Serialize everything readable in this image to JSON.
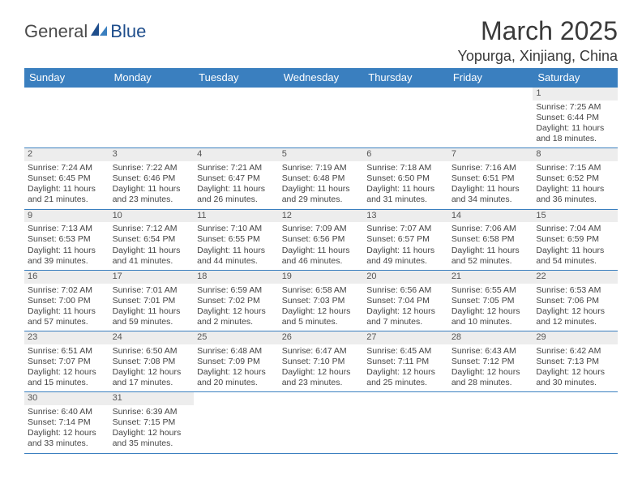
{
  "logo": {
    "textA": "General",
    "textB": "Blue"
  },
  "title": "March 2025",
  "location": "Yopurga, Xinjiang, China",
  "header_bg": "#3a7fbf",
  "day_headers": [
    "Sunday",
    "Monday",
    "Tuesday",
    "Wednesday",
    "Thursday",
    "Friday",
    "Saturday"
  ],
  "weeks": [
    [
      null,
      null,
      null,
      null,
      null,
      null,
      {
        "n": "1",
        "sr": "Sunrise: 7:25 AM",
        "ss": "Sunset: 6:44 PM",
        "d1": "Daylight: 11 hours",
        "d2": "and 18 minutes."
      }
    ],
    [
      {
        "n": "2",
        "sr": "Sunrise: 7:24 AM",
        "ss": "Sunset: 6:45 PM",
        "d1": "Daylight: 11 hours",
        "d2": "and 21 minutes."
      },
      {
        "n": "3",
        "sr": "Sunrise: 7:22 AM",
        "ss": "Sunset: 6:46 PM",
        "d1": "Daylight: 11 hours",
        "d2": "and 23 minutes."
      },
      {
        "n": "4",
        "sr": "Sunrise: 7:21 AM",
        "ss": "Sunset: 6:47 PM",
        "d1": "Daylight: 11 hours",
        "d2": "and 26 minutes."
      },
      {
        "n": "5",
        "sr": "Sunrise: 7:19 AM",
        "ss": "Sunset: 6:48 PM",
        "d1": "Daylight: 11 hours",
        "d2": "and 29 minutes."
      },
      {
        "n": "6",
        "sr": "Sunrise: 7:18 AM",
        "ss": "Sunset: 6:50 PM",
        "d1": "Daylight: 11 hours",
        "d2": "and 31 minutes."
      },
      {
        "n": "7",
        "sr": "Sunrise: 7:16 AM",
        "ss": "Sunset: 6:51 PM",
        "d1": "Daylight: 11 hours",
        "d2": "and 34 minutes."
      },
      {
        "n": "8",
        "sr": "Sunrise: 7:15 AM",
        "ss": "Sunset: 6:52 PM",
        "d1": "Daylight: 11 hours",
        "d2": "and 36 minutes."
      }
    ],
    [
      {
        "n": "9",
        "sr": "Sunrise: 7:13 AM",
        "ss": "Sunset: 6:53 PM",
        "d1": "Daylight: 11 hours",
        "d2": "and 39 minutes."
      },
      {
        "n": "10",
        "sr": "Sunrise: 7:12 AM",
        "ss": "Sunset: 6:54 PM",
        "d1": "Daylight: 11 hours",
        "d2": "and 41 minutes."
      },
      {
        "n": "11",
        "sr": "Sunrise: 7:10 AM",
        "ss": "Sunset: 6:55 PM",
        "d1": "Daylight: 11 hours",
        "d2": "and 44 minutes."
      },
      {
        "n": "12",
        "sr": "Sunrise: 7:09 AM",
        "ss": "Sunset: 6:56 PM",
        "d1": "Daylight: 11 hours",
        "d2": "and 46 minutes."
      },
      {
        "n": "13",
        "sr": "Sunrise: 7:07 AM",
        "ss": "Sunset: 6:57 PM",
        "d1": "Daylight: 11 hours",
        "d2": "and 49 minutes."
      },
      {
        "n": "14",
        "sr": "Sunrise: 7:06 AM",
        "ss": "Sunset: 6:58 PM",
        "d1": "Daylight: 11 hours",
        "d2": "and 52 minutes."
      },
      {
        "n": "15",
        "sr": "Sunrise: 7:04 AM",
        "ss": "Sunset: 6:59 PM",
        "d1": "Daylight: 11 hours",
        "d2": "and 54 minutes."
      }
    ],
    [
      {
        "n": "16",
        "sr": "Sunrise: 7:02 AM",
        "ss": "Sunset: 7:00 PM",
        "d1": "Daylight: 11 hours",
        "d2": "and 57 minutes."
      },
      {
        "n": "17",
        "sr": "Sunrise: 7:01 AM",
        "ss": "Sunset: 7:01 PM",
        "d1": "Daylight: 11 hours",
        "d2": "and 59 minutes."
      },
      {
        "n": "18",
        "sr": "Sunrise: 6:59 AM",
        "ss": "Sunset: 7:02 PM",
        "d1": "Daylight: 12 hours",
        "d2": "and 2 minutes."
      },
      {
        "n": "19",
        "sr": "Sunrise: 6:58 AM",
        "ss": "Sunset: 7:03 PM",
        "d1": "Daylight: 12 hours",
        "d2": "and 5 minutes."
      },
      {
        "n": "20",
        "sr": "Sunrise: 6:56 AM",
        "ss": "Sunset: 7:04 PM",
        "d1": "Daylight: 12 hours",
        "d2": "and 7 minutes."
      },
      {
        "n": "21",
        "sr": "Sunrise: 6:55 AM",
        "ss": "Sunset: 7:05 PM",
        "d1": "Daylight: 12 hours",
        "d2": "and 10 minutes."
      },
      {
        "n": "22",
        "sr": "Sunrise: 6:53 AM",
        "ss": "Sunset: 7:06 PM",
        "d1": "Daylight: 12 hours",
        "d2": "and 12 minutes."
      }
    ],
    [
      {
        "n": "23",
        "sr": "Sunrise: 6:51 AM",
        "ss": "Sunset: 7:07 PM",
        "d1": "Daylight: 12 hours",
        "d2": "and 15 minutes."
      },
      {
        "n": "24",
        "sr": "Sunrise: 6:50 AM",
        "ss": "Sunset: 7:08 PM",
        "d1": "Daylight: 12 hours",
        "d2": "and 17 minutes."
      },
      {
        "n": "25",
        "sr": "Sunrise: 6:48 AM",
        "ss": "Sunset: 7:09 PM",
        "d1": "Daylight: 12 hours",
        "d2": "and 20 minutes."
      },
      {
        "n": "26",
        "sr": "Sunrise: 6:47 AM",
        "ss": "Sunset: 7:10 PM",
        "d1": "Daylight: 12 hours",
        "d2": "and 23 minutes."
      },
      {
        "n": "27",
        "sr": "Sunrise: 6:45 AM",
        "ss": "Sunset: 7:11 PM",
        "d1": "Daylight: 12 hours",
        "d2": "and 25 minutes."
      },
      {
        "n": "28",
        "sr": "Sunrise: 6:43 AM",
        "ss": "Sunset: 7:12 PM",
        "d1": "Daylight: 12 hours",
        "d2": "and 28 minutes."
      },
      {
        "n": "29",
        "sr": "Sunrise: 6:42 AM",
        "ss": "Sunset: 7:13 PM",
        "d1": "Daylight: 12 hours",
        "d2": "and 30 minutes."
      }
    ],
    [
      {
        "n": "30",
        "sr": "Sunrise: 6:40 AM",
        "ss": "Sunset: 7:14 PM",
        "d1": "Daylight: 12 hours",
        "d2": "and 33 minutes."
      },
      {
        "n": "31",
        "sr": "Sunrise: 6:39 AM",
        "ss": "Sunset: 7:15 PM",
        "d1": "Daylight: 12 hours",
        "d2": "and 35 minutes."
      },
      null,
      null,
      null,
      null,
      null
    ]
  ]
}
